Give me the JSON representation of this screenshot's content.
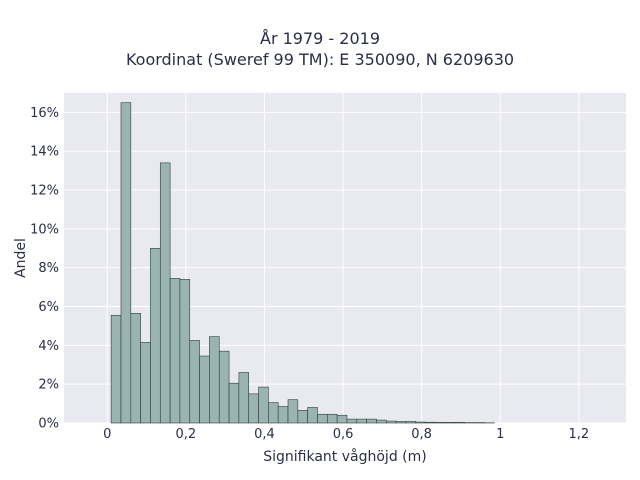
{
  "title_line1": "År 1979 - 2019",
  "title_line2": "Koordinat (Sweref 99 TM): E 350090, N 6209630",
  "chart_data": {
    "type": "bar",
    "title": "År 1979 - 2019\nKoordinat (Sweref 99 TM): E 350090, N 6209630",
    "xlabel": "Signifikant våghöjd (m)",
    "ylabel": "Andel",
    "xlim": [
      -0.11,
      1.32
    ],
    "ylim": [
      0,
      0.17
    ],
    "xticks": [
      0,
      0.2,
      0.4,
      0.6,
      0.8,
      1,
      1.2
    ],
    "xtick_labels": [
      "0",
      "0,2",
      "0,4",
      "0,6",
      "0,8",
      "1",
      "1,2"
    ],
    "yticks": [
      0,
      0.02,
      0.04,
      0.06,
      0.08,
      0.1,
      0.12,
      0.14,
      0.16
    ],
    "ytick_labels": [
      "0%",
      "2%",
      "4%",
      "6%",
      "8%",
      "10%",
      "12%",
      "14%",
      "16%"
    ],
    "grid": true,
    "bin_start": 0.01,
    "bin_width": 0.025,
    "values": [
      0.0555,
      0.165,
      0.0565,
      0.0415,
      0.09,
      0.134,
      0.0745,
      0.074,
      0.0425,
      0.0345,
      0.0445,
      0.037,
      0.0205,
      0.026,
      0.015,
      0.0185,
      0.0105,
      0.0085,
      0.012,
      0.0065,
      0.008,
      0.0045,
      0.0045,
      0.004,
      0.002,
      0.002,
      0.002,
      0.0015,
      0.001,
      0.0008,
      0.0008,
      0.0005,
      0.0004,
      0.0003,
      0.0003,
      0.0003,
      0.0002,
      0.0002,
      0.0001
    ],
    "bar_color": "#9ab4b4",
    "bar_edge_color": "#2f3d3d",
    "plot_bg": "#e9e9f1"
  }
}
